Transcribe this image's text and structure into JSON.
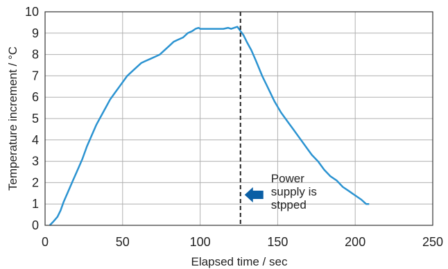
{
  "chart_data": {
    "type": "line",
    "title": "",
    "xlabel": "Elapsed time / sec",
    "ylabel": "Temperature increment / °C",
    "xlim": [
      0,
      250
    ],
    "ylim": [
      0,
      10
    ],
    "xticks": [
      0,
      50,
      100,
      150,
      200,
      250
    ],
    "yticks": [
      0,
      1,
      2,
      3,
      4,
      5,
      6,
      7,
      8,
      9,
      10
    ],
    "grid": true,
    "series": [
      {
        "color": "#2b93d1",
        "x": [
          3,
          5,
          8,
          10,
          12,
          15,
          18,
          21,
          24,
          27,
          30,
          33,
          36,
          39,
          42,
          45,
          48,
          50,
          53,
          56,
          59,
          62,
          65,
          68,
          71,
          74,
          77,
          80,
          83,
          86,
          89,
          92,
          95,
          97,
          99,
          100,
          105,
          110,
          115,
          118,
          120,
          122,
          124,
          125,
          126,
          128,
          130,
          133,
          136,
          140,
          144,
          148,
          152,
          156,
          160,
          164,
          168,
          172,
          176,
          180,
          184,
          188,
          192,
          196,
          200,
          204,
          207,
          209
        ],
        "y": [
          0,
          0.15,
          0.4,
          0.7,
          1.1,
          1.6,
          2.1,
          2.6,
          3.1,
          3.7,
          4.2,
          4.7,
          5.1,
          5.5,
          5.9,
          6.2,
          6.5,
          6.7,
          7.0,
          7.2,
          7.4,
          7.6,
          7.7,
          7.8,
          7.9,
          8.0,
          8.2,
          8.4,
          8.6,
          8.7,
          8.8,
          9.0,
          9.1,
          9.2,
          9.25,
          9.2,
          9.2,
          9.2,
          9.2,
          9.25,
          9.2,
          9.25,
          9.3,
          9.2,
          9.1,
          8.9,
          8.6,
          8.2,
          7.7,
          7.0,
          6.4,
          5.8,
          5.3,
          4.9,
          4.5,
          4.1,
          3.7,
          3.3,
          3.0,
          2.6,
          2.3,
          2.1,
          1.8,
          1.6,
          1.4,
          1.2,
          1.0,
          1.0
        ]
      }
    ],
    "annotations": {
      "event_x": 126,
      "event_label": [
        "Power",
        "supply is",
        "stpped"
      ],
      "arrow_color": "#0b5fa5"
    }
  }
}
